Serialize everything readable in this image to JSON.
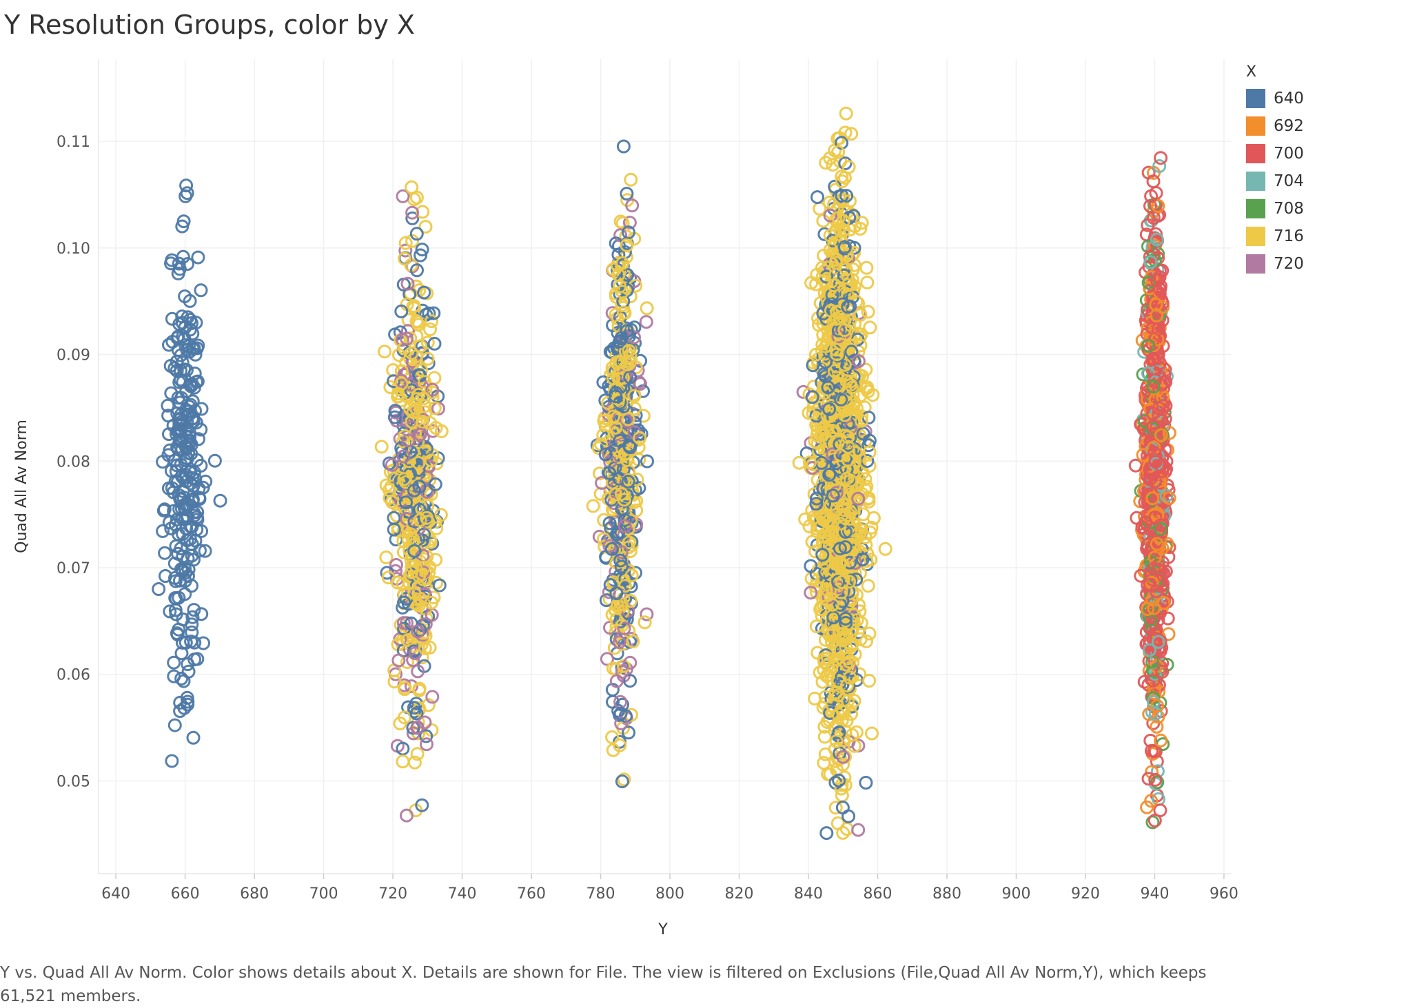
{
  "title": "Y Resolution Groups, color by X",
  "caption": "Y vs. Quad All Av Norm.  Color shows details about X.  Details are shown for File. The view is filtered on Exclusions (File,Quad All Av Norm,Y), which keeps 61,521 members.",
  "legend": {
    "title": "X",
    "items": [
      {
        "label": "640",
        "color": "#4e79a7"
      },
      {
        "label": "692",
        "color": "#f28e2b"
      },
      {
        "label": "700",
        "color": "#e15759"
      },
      {
        "label": "704",
        "color": "#76b7b2"
      },
      {
        "label": "708",
        "color": "#59a14f"
      },
      {
        "label": "716",
        "color": "#edc948"
      },
      {
        "label": "720",
        "color": "#b07aa1"
      }
    ]
  },
  "chart_data": {
    "type": "scatter",
    "title": "Y Resolution Groups, color by X",
    "xlabel": "Y",
    "ylabel": "Quad All Av Norm",
    "xlim": [
      635,
      962
    ],
    "ylim": [
      0.0413,
      0.1177
    ],
    "x_ticks": [
      "640",
      "660",
      "680",
      "700",
      "720",
      "740",
      "760",
      "780",
      "800",
      "820",
      "840",
      "860",
      "880",
      "900",
      "920",
      "940",
      "960"
    ],
    "y_ticks": [
      "0.05",
      "0.06",
      "0.07",
      "0.08",
      "0.09",
      "0.10",
      "0.11"
    ],
    "grid": true,
    "legend_position": "right",
    "marker": "hollow-circle",
    "clusters": [
      {
        "y_center": 660,
        "x_spread": 5,
        "y_range": [
          0.0505,
          0.1062
        ],
        "points_shown": 260,
        "series": [
          {
            "name": "640",
            "share": 1.0
          }
        ]
      },
      {
        "y_center": 726,
        "x_spread": 7,
        "y_range": [
          0.046,
          0.1058
        ],
        "points_shown": 520,
        "series": [
          {
            "name": "640",
            "share": 0.28
          },
          {
            "name": "720",
            "share": 0.18
          },
          {
            "name": "716",
            "share": 0.54
          }
        ]
      },
      {
        "y_center": 786,
        "x_spread": 5,
        "y_range": [
          0.049,
          0.1103
        ],
        "points_shown": 520,
        "series": [
          {
            "name": "640",
            "share": 0.4
          },
          {
            "name": "720",
            "share": 0.15
          },
          {
            "name": "716",
            "share": 0.45
          }
        ]
      },
      {
        "y_center": 849,
        "x_spread": 7,
        "y_range": [
          0.0447,
          0.1127
        ],
        "points_shown": 1500,
        "series": [
          {
            "name": "640",
            "share": 0.22
          },
          {
            "name": "720",
            "share": 0.04
          },
          {
            "name": "716",
            "share": 0.74
          }
        ]
      },
      {
        "y_center": 940,
        "x_spread": 3,
        "y_range": [
          0.0454,
          0.112
        ],
        "points_shown": 900,
        "series": [
          {
            "name": "692",
            "share": 0.2
          },
          {
            "name": "700",
            "share": 0.64
          },
          {
            "name": "704",
            "share": 0.08
          },
          {
            "name": "708",
            "share": 0.08
          }
        ]
      }
    ]
  }
}
